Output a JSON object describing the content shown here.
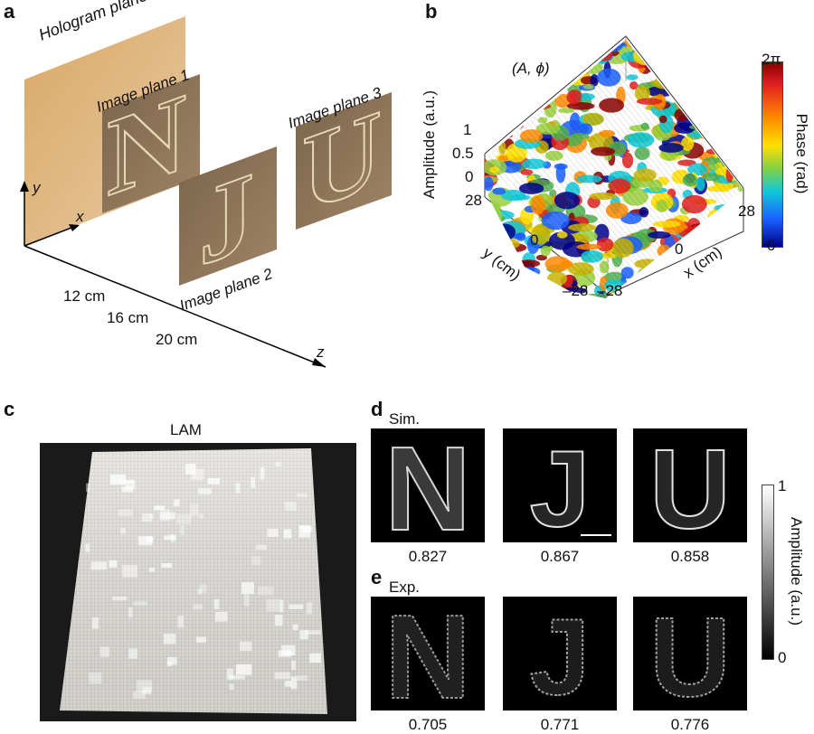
{
  "panels": {
    "a": {
      "label": "a",
      "hologram_plane": "Hologram plane",
      "image_plane_1": "Image plane 1",
      "image_plane_2": "Image plane 2",
      "image_plane_3": "Image plane 3",
      "letter_1": "N",
      "letter_2": "J",
      "letter_3": "U",
      "axis_y": "y",
      "axis_x": "x",
      "axis_z": "z",
      "dist_1": "12 cm",
      "dist_2": "16 cm",
      "dist_3": "20 cm"
    },
    "b": {
      "label": "b",
      "annotation": "(A, ϕ)",
      "zlabel": "Amplitude (a.u.)",
      "z_ticks": [
        "1",
        "0.5",
        "0"
      ],
      "ylabel": "y (cm)",
      "xlabel": "x (cm)",
      "y_ticks": [
        "28",
        "0",
        "–28"
      ],
      "x_ticks": [
        "–28",
        "0",
        "28"
      ],
      "colorbar_label": "Phase (rad)",
      "colorbar_max": "2π",
      "colorbar_min": "0"
    },
    "c": {
      "label": "c",
      "title": "LAM"
    },
    "d": {
      "label": "d",
      "title": "Sim.",
      "scores": [
        "0.827",
        "0.867",
        "0.858"
      ]
    },
    "e": {
      "label": "e",
      "title": "Exp.",
      "scores": [
        "0.705",
        "0.771",
        "0.776"
      ]
    },
    "amp_colorbar": {
      "label": "Amplitude (a.u.)",
      "max": "1",
      "min": "0"
    }
  }
}
